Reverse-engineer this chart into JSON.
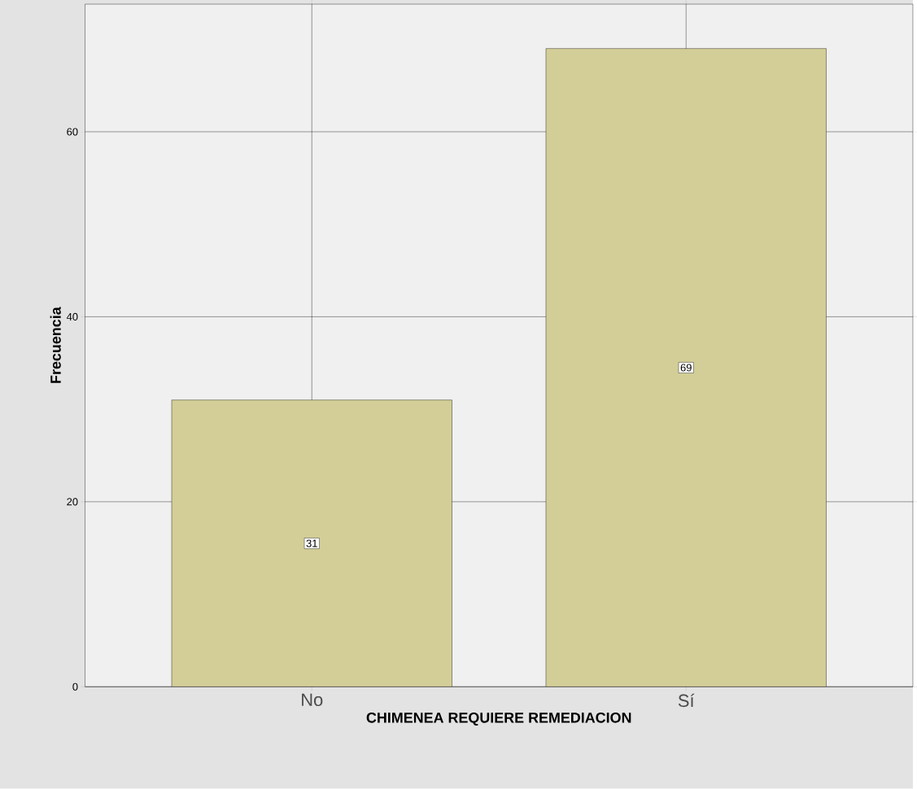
{
  "chart_data": {
    "type": "bar",
    "xlabel": "CHIMENEA REQUIERE REMEDIACION",
    "ylabel": "Frecuencia",
    "categories": [
      "No",
      "Sí"
    ],
    "values": [
      31,
      69
    ],
    "color": "#d3ce97",
    "ylim": [
      0,
      73.8
    ],
    "yticks": [
      0,
      20,
      40,
      60
    ],
    "grid": true,
    "data_labels": true
  }
}
